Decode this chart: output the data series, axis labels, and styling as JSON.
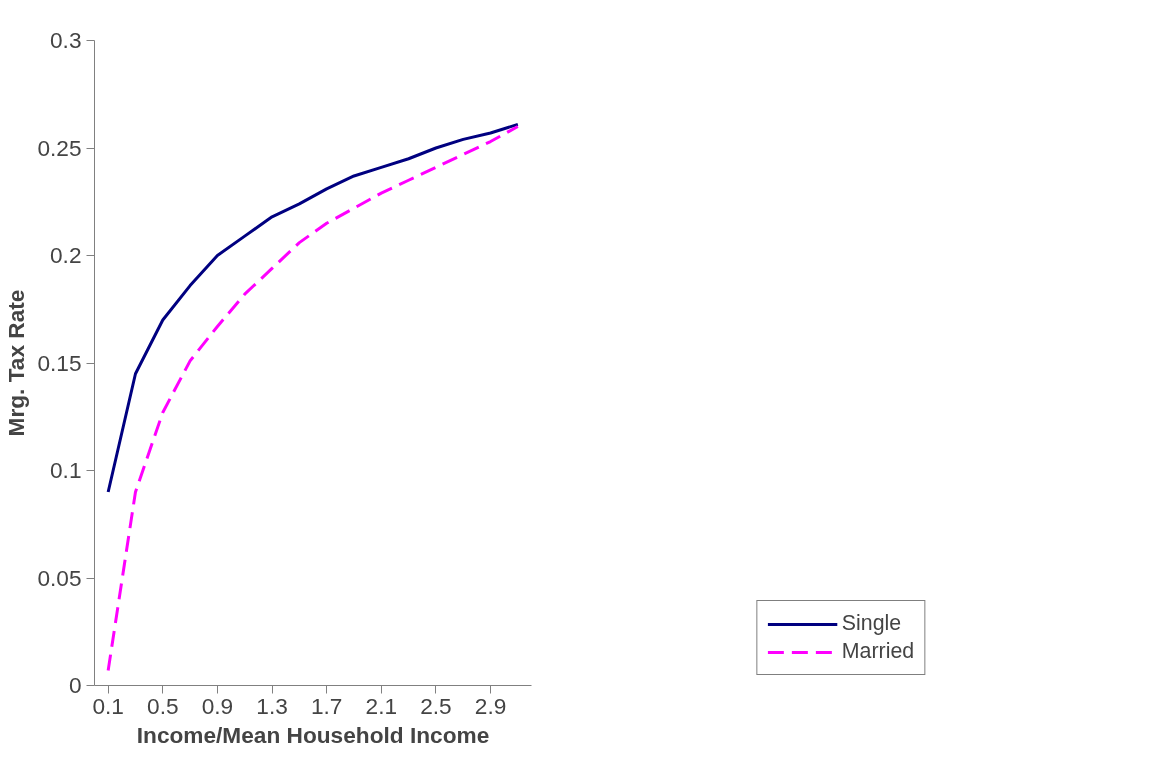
{
  "chart_data": {
    "type": "line",
    "xlabel": "Income/Mean Household Income",
    "ylabel": "Mrg. Tax Rate",
    "categories": [
      "0.1",
      null,
      "0.5",
      null,
      "0.9",
      null,
      "1.3",
      null,
      "1.7",
      null,
      "2.1",
      null,
      "2.5",
      null,
      "2.9",
      null
    ],
    "series": [
      {
        "name": "Single",
        "color": "#000080",
        "line_style": "solid",
        "values": [
          0.09,
          0.145,
          0.17,
          0.186,
          0.2,
          0.209,
          0.218,
          0.224,
          0.231,
          0.237,
          0.241,
          0.245,
          0.25,
          0.254,
          0.257,
          0.261
        ]
      },
      {
        "name": "Married",
        "color": "#ff00ff",
        "line_style": "dashed",
        "values": [
          0.007,
          0.09,
          0.127,
          0.151,
          0.167,
          0.182,
          0.194,
          0.206,
          0.215,
          0.222,
          0.229,
          0.235,
          0.241,
          0.247,
          0.253,
          0.26
        ]
      }
    ],
    "ylim": [
      0,
      0.3
    ],
    "yticks": [
      0,
      0.05,
      0.1,
      0.15,
      0.2,
      0.25,
      0.3
    ],
    "grid": false,
    "legend": "bottom right",
    "marker": "none"
  }
}
